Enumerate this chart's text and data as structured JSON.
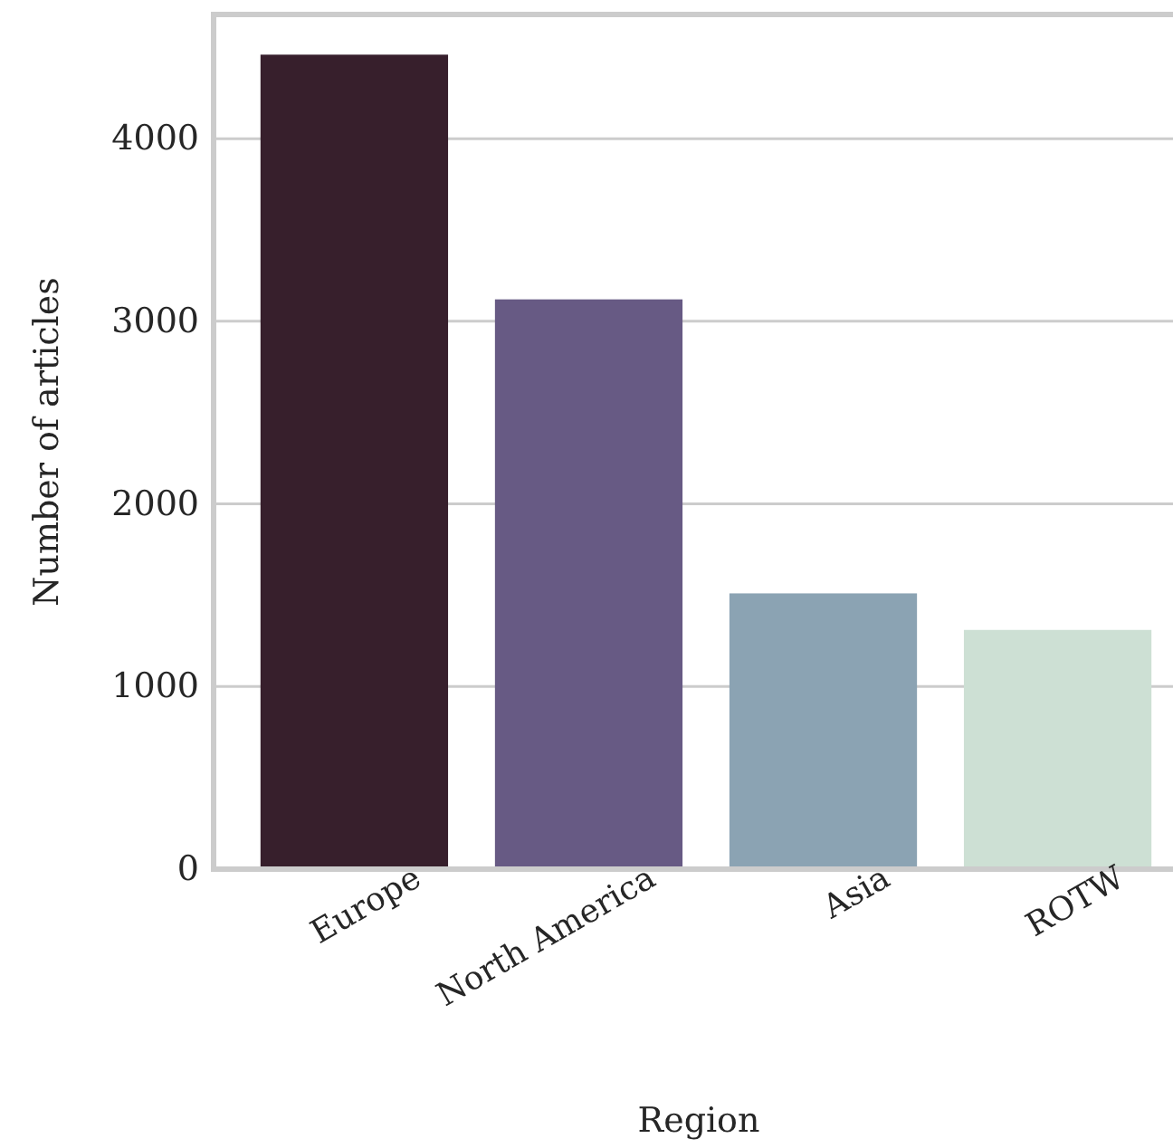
{
  "chart_data": {
    "type": "bar",
    "xlabel": "Region",
    "ylabel": "Number of articles",
    "categories": [
      "Europe",
      "North America",
      "Asia",
      "ROTW"
    ],
    "values": [
      4460,
      3120,
      1510,
      1310
    ],
    "colors": [
      "#371f2c",
      "#675a84",
      "#8ba3b3",
      "#cde0d4"
    ],
    "ylim": [
      0,
      4680
    ],
    "yticks": [
      0,
      1000,
      2000,
      3000,
      4000
    ],
    "grid": "y"
  }
}
